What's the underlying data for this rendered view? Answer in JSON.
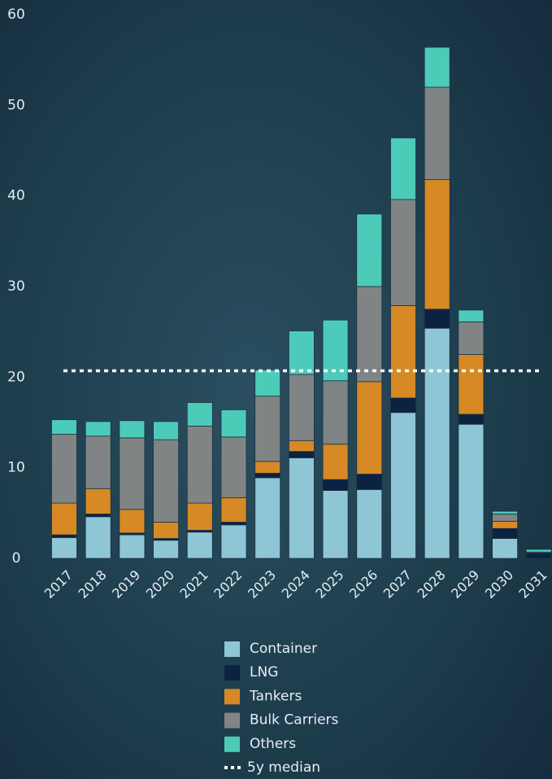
{
  "chart_data": {
    "type": "stacked-bar",
    "categories": [
      "2017",
      "2018",
      "2019",
      "2020",
      "2021",
      "2022",
      "2023",
      "2024",
      "2025",
      "2026",
      "2027",
      "2028",
      "2029",
      "2030",
      "2031"
    ],
    "series": [
      {
        "name": "Container",
        "color": "#8fc6d5",
        "values": [
          2.3,
          4.6,
          2.6,
          2.0,
          2.9,
          3.7,
          8.9,
          11.1,
          7.5,
          7.6,
          16.1,
          25.4,
          14.8,
          2.2,
          0
        ]
      },
      {
        "name": "LNG",
        "color": "#0b2241",
        "values": [
          0.3,
          0.3,
          0.2,
          0.2,
          0.2,
          0.3,
          0.5,
          0.7,
          1.2,
          1.7,
          1.6,
          2.1,
          1.1,
          1.1,
          0.6
        ]
      },
      {
        "name": "Tankers",
        "color": "#d78925",
        "values": [
          3.5,
          2.8,
          2.6,
          1.8,
          3.0,
          2.7,
          1.3,
          1.2,
          3.9,
          10.2,
          10.2,
          14.3,
          6.6,
          0.8,
          0
        ]
      },
      {
        "name": "Bulk Carriers",
        "color": "#808484",
        "values": [
          7.6,
          5.8,
          7.9,
          9.1,
          8.5,
          6.7,
          7.2,
          7.3,
          7.0,
          10.5,
          11.7,
          10.2,
          3.6,
          0.8,
          0.1
        ]
      },
      {
        "name": "Others",
        "color": "#4ccbb9",
        "values": [
          1.6,
          1.6,
          1.9,
          2.0,
          2.6,
          3.0,
          2.9,
          4.8,
          6.7,
          8.0,
          6.8,
          4.4,
          1.3,
          0.3,
          0.3
        ]
      }
    ],
    "median": {
      "name": "5y median",
      "value": 20.7,
      "color": "#ffffff"
    },
    "ylim": [
      0,
      60
    ],
    "yticks": [
      0,
      10,
      20,
      30,
      40,
      50,
      60
    ]
  }
}
